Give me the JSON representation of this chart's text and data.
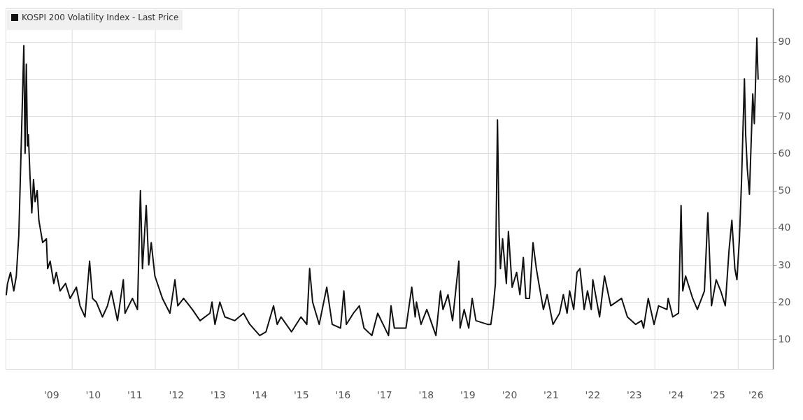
{
  "chart_data": {
    "type": "line",
    "x": [
      "2008-06-02",
      "2008-06-13",
      "2008-07-09",
      "2008-08-07",
      "2008-08-29",
      "2008-09-20",
      "2008-10-12",
      "2008-11-03",
      "2008-11-14",
      "2008-11-25",
      "2008-12-05",
      "2008-12-13",
      "2008-12-27",
      "2009-01-12",
      "2009-01-27",
      "2009-02-10",
      "2009-02-28",
      "2009-03-15",
      "2009-04-17",
      "2009-05-20",
      "2009-05-31",
      "2009-06-22",
      "2009-07-24",
      "2009-08-15",
      "2009-09-17",
      "2009-11-04",
      "2009-12-14",
      "2010-02-07",
      "2010-03-11",
      "2010-04-24",
      "2010-06-03",
      "2010-06-29",
      "2010-08-01",
      "2010-09-24",
      "2010-11-07",
      "2010-12-10",
      "2011-02-03",
      "2011-03-26",
      "2011-04-10",
      "2011-06-14",
      "2011-07-28",
      "2011-08-23",
      "2011-09-10",
      "2011-10-13",
      "2011-11-04",
      "2011-11-26",
      "2011-12-28",
      "2012-03-03",
      "2012-05-08",
      "2012-06-21",
      "2012-07-16",
      "2012-09-05",
      "2012-11-21",
      "2013-01-27",
      "2013-04-24",
      "2013-05-12",
      "2013-06-07",
      "2013-07-20",
      "2013-09-02",
      "2013-11-28",
      "2014-02-13",
      "2014-04-09",
      "2014-07-05",
      "2014-08-29",
      "2014-11-03",
      "2014-12-05",
      "2015-01-08",
      "2015-04-10",
      "2015-07-02",
      "2015-08-22",
      "2015-09-16",
      "2015-10-12",
      "2015-12-09",
      "2016-02-13",
      "2016-04-01",
      "2016-06-13",
      "2016-07-12",
      "2016-08-03",
      "2016-10-04",
      "2016-11-25",
      "2017-01-05",
      "2017-03-15",
      "2017-05-05",
      "2017-08-08",
      "2017-08-30",
      "2017-09-28",
      "2018-01-08",
      "2018-02-28",
      "2018-03-30",
      "2018-04-10",
      "2018-05-20",
      "2018-07-10",
      "2018-09-28",
      "2018-11-07",
      "2018-11-29",
      "2019-01-12",
      "2019-02-21",
      "2019-04-17",
      "2019-04-28",
      "2019-06-03",
      "2019-07-13",
      "2019-08-12",
      "2019-09-14",
      "2019-12-25",
      "2020-01-23",
      "2020-02-14",
      "2020-03-03",
      "2020-03-21",
      "2020-04-05",
      "2020-04-16",
      "2020-05-05",
      "2020-06-07",
      "2020-06-25",
      "2020-07-28",
      "2020-09-05",
      "2020-10-04",
      "2020-11-03",
      "2020-11-25",
      "2020-12-27",
      "2021-01-27",
      "2021-02-25",
      "2021-03-19",
      "2021-04-28",
      "2021-05-31",
      "2021-07-21",
      "2021-09-17",
      "2021-10-20",
      "2021-11-22",
      "2021-12-14",
      "2022-01-19",
      "2022-02-17",
      "2022-03-15",
      "2022-04-21",
      "2022-05-20",
      "2022-06-22",
      "2022-07-06",
      "2022-09-03",
      "2022-10-16",
      "2022-12-10",
      "2023-03-15",
      "2023-05-05",
      "2023-07-17",
      "2023-09-06",
      "2023-09-24",
      "2023-11-04",
      "2023-12-25",
      "2024-02-03",
      "2024-04-16",
      "2024-04-27",
      "2024-06-06",
      "2024-07-27",
      "2024-08-18",
      "2024-09-02",
      "2024-09-27",
      "2024-11-28",
      "2025-01-08",
      "2025-03-11",
      "2025-04-10",
      "2025-05-12",
      "2025-06-22",
      "2025-08-01",
      "2025-09-10",
      "2025-10-13",
      "2025-11-07",
      "2025-12-03",
      "2025-12-21",
      "2026-01-12",
      "2026-01-30",
      "2026-02-25",
      "2026-03-08",
      "2026-03-22",
      "2026-04-10",
      "2026-05-09",
      "2026-05-23",
      "2026-06-14",
      "2026-06-25"
    ],
    "series": [
      {
        "name": "KOSPI 200 Volatility Index - Last Price",
        "color": "#111111",
        "values": [
          22,
          25,
          28,
          23,
          27,
          38,
          63,
          89,
          60,
          84,
          62,
          65,
          54,
          44,
          53,
          47,
          50,
          42,
          36,
          37,
          29,
          31,
          25,
          28,
          23,
          25,
          21,
          24,
          19,
          16,
          31,
          21,
          20,
          16,
          19,
          23,
          15,
          26,
          17,
          21,
          18,
          50,
          29,
          46,
          30,
          36,
          27,
          21,
          17,
          26,
          19,
          21,
          18,
          15,
          17,
          20,
          14,
          20,
          16,
          15,
          17,
          14,
          11,
          12,
          19,
          14,
          16,
          12,
          16,
          14,
          29,
          20,
          14,
          24,
          14,
          13,
          23,
          14,
          17,
          19,
          13,
          11,
          17,
          11,
          19,
          13,
          13,
          24,
          16,
          20,
          14,
          18,
          11,
          23,
          18,
          22,
          15,
          31,
          13,
          18,
          13,
          21,
          15,
          14,
          14,
          19,
          25,
          69,
          38,
          29,
          37,
          25,
          39,
          24,
          28,
          22,
          32,
          21,
          21,
          36,
          29,
          25,
          18,
          22,
          14,
          17,
          22,
          17,
          23,
          18,
          28,
          29,
          18,
          23,
          18,
          26,
          16,
          27,
          19,
          21,
          16,
          14,
          15,
          13,
          21,
          14,
          19,
          18,
          21,
          16,
          17,
          46,
          23,
          27,
          21,
          18,
          23,
          44,
          19,
          26,
          23,
          19,
          34,
          42,
          29,
          26,
          37,
          52,
          80,
          65,
          56,
          49,
          76,
          68,
          91,
          80
        ]
      }
    ],
    "xlim": [
      "2008-05-27",
      "2026-11-02"
    ],
    "xticks": [
      {
        "value": "2009-07-02",
        "label": "'09"
      },
      {
        "value": "2010-01-01",
        "label": null
      },
      {
        "value": "2010-07-02",
        "label": "'10"
      },
      {
        "value": "2011-07-02",
        "label": "'11"
      },
      {
        "value": "2012-01-01",
        "label": null
      },
      {
        "value": "2012-07-02",
        "label": "'12"
      },
      {
        "value": "2013-07-02",
        "label": "'13"
      },
      {
        "value": "2014-01-01",
        "label": null
      },
      {
        "value": "2014-07-02",
        "label": "'14"
      },
      {
        "value": "2015-07-02",
        "label": "'15"
      },
      {
        "value": "2016-01-01",
        "label": null
      },
      {
        "value": "2016-07-02",
        "label": "'16"
      },
      {
        "value": "2017-07-02",
        "label": "'17"
      },
      {
        "value": "2018-01-01",
        "label": null
      },
      {
        "value": "2018-07-02",
        "label": "'18"
      },
      {
        "value": "2019-07-02",
        "label": "'19"
      },
      {
        "value": "2020-01-01",
        "label": null
      },
      {
        "value": "2020-07-02",
        "label": "'20"
      },
      {
        "value": "2021-07-02",
        "label": "'21"
      },
      {
        "value": "2022-01-01",
        "label": null
      },
      {
        "value": "2022-07-02",
        "label": "'22"
      },
      {
        "value": "2023-07-02",
        "label": "'23"
      },
      {
        "value": "2024-01-01",
        "label": null
      },
      {
        "value": "2024-07-02",
        "label": "'24"
      },
      {
        "value": "2025-07-02",
        "label": "'25"
      },
      {
        "value": "2026-01-01",
        "label": null
      },
      {
        "value": "2026-06-03",
        "label": "'26"
      }
    ],
    "ylim": [
      2,
      99
    ],
    "yticks": [
      10,
      20,
      30,
      40,
      50,
      60,
      70,
      80,
      90
    ],
    "grid": true,
    "legend": "top left",
    "line_style": "solid"
  }
}
